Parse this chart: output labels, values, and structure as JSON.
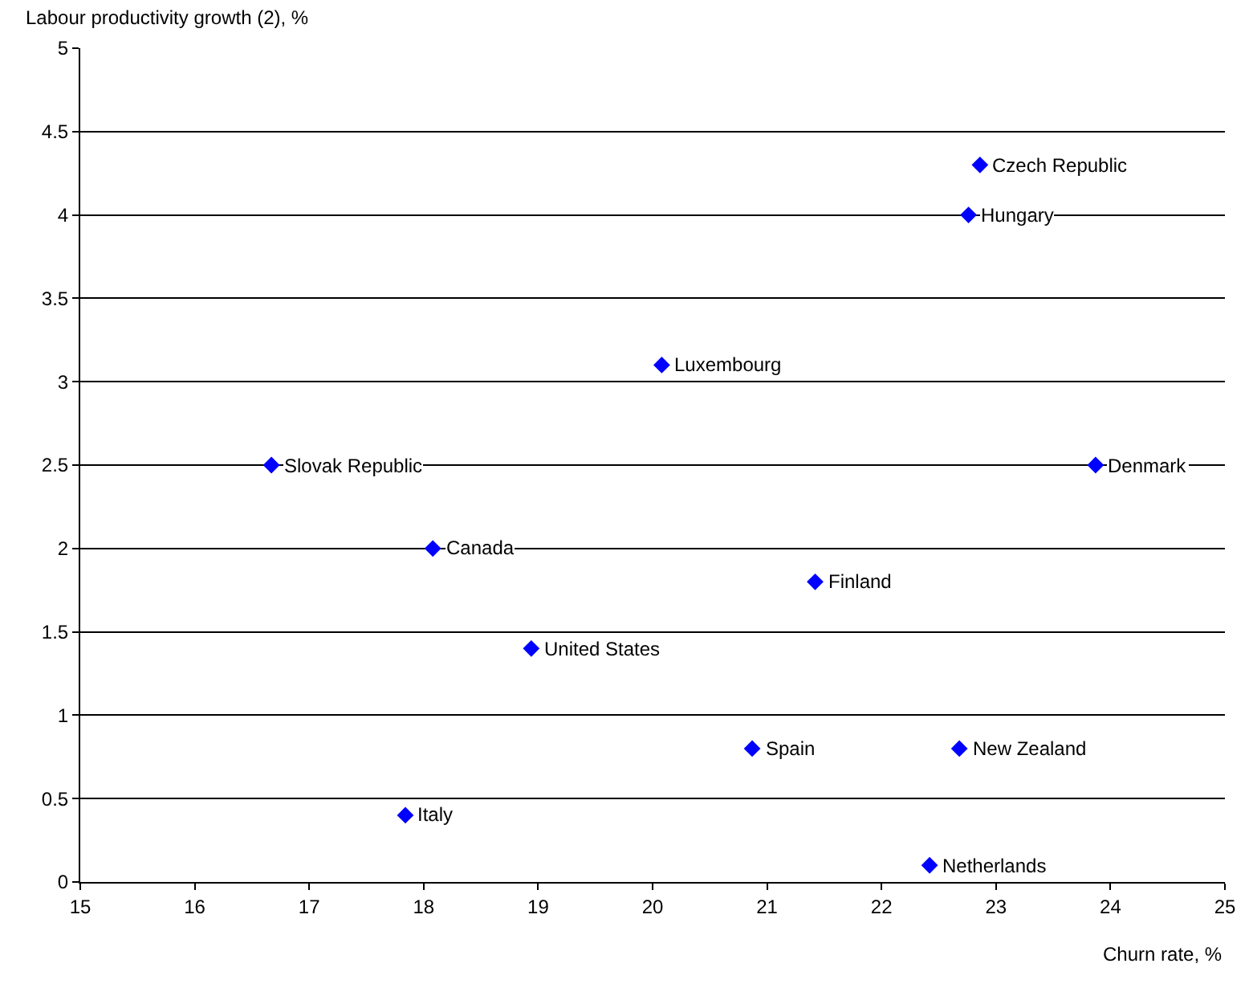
{
  "chart_data": {
    "type": "scatter",
    "xlabel": "Churn rate, %",
    "ylabel": "Labour productivity growth (2), %",
    "x": [
      22.86,
      22.76,
      20.08,
      16.67,
      23.87,
      18.08,
      21.42,
      18.94,
      20.87,
      22.68,
      17.84,
      22.42
    ],
    "series": [
      {
        "color": "#0000ff",
        "values": [
          4.3,
          4.0,
          3.1,
          2.5,
          2.5,
          2.0,
          1.8,
          1.4,
          0.8,
          0.8,
          0.4,
          0.1
        ]
      }
    ],
    "annotations": [
      {
        "text": "Czech Republic",
        "x": 22.86,
        "y": 4.3
      },
      {
        "text": "Hungary",
        "x": 22.76,
        "y": 4.0
      },
      {
        "text": "Luxembourg",
        "x": 20.08,
        "y": 3.1
      },
      {
        "text": "Slovak Republic",
        "x": 16.67,
        "y": 2.5
      },
      {
        "text": "Denmark",
        "x": 23.87,
        "y": 2.5
      },
      {
        "text": "Canada",
        "x": 18.08,
        "y": 2.0
      },
      {
        "text": "Finland",
        "x": 21.42,
        "y": 1.8
      },
      {
        "text": "United States",
        "x": 18.94,
        "y": 1.4
      },
      {
        "text": "Spain",
        "x": 20.87,
        "y": 0.8
      },
      {
        "text": "New Zealand",
        "x": 22.68,
        "y": 0.8
      },
      {
        "text": "Italy",
        "x": 17.84,
        "y": 0.4
      },
      {
        "text": "Netherlands",
        "x": 22.42,
        "y": 0.1
      }
    ],
    "xlim": [
      15,
      25
    ],
    "xticks": [
      15,
      16,
      17,
      18,
      19,
      20,
      21,
      22,
      23,
      24,
      25
    ],
    "ylim": [
      0,
      5
    ],
    "yticks": [
      0,
      0.5,
      1,
      1.5,
      2,
      2.5,
      3,
      3.5,
      4,
      4.5,
      5
    ],
    "grid": "y",
    "marker": "diamond"
  }
}
